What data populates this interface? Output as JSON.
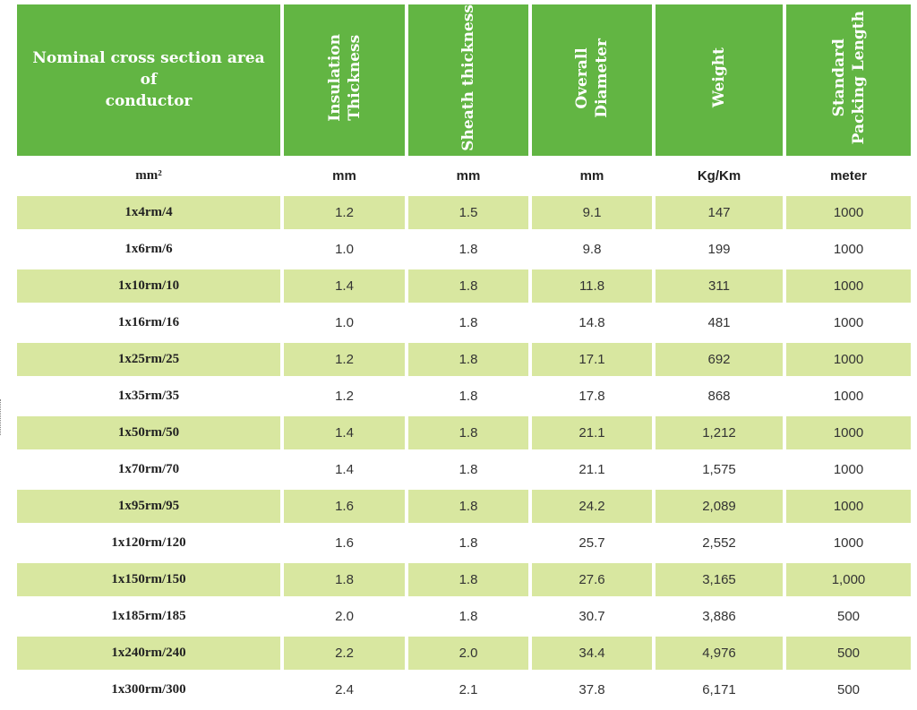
{
  "headers": [
    "Nominal cross section area of conductor",
    "Insulation Thickness",
    "Sheath thickness",
    "Overall Diameter",
    "Weight",
    "Standard Packing Length"
  ],
  "header_lines": [
    [
      "Nominal cross section area of",
      "conductor"
    ],
    [
      "Insulation",
      "Thickness"
    ],
    [
      "Sheath thickness"
    ],
    [
      "Overall",
      "Diameter"
    ],
    [
      "Weight"
    ],
    [
      "Standard",
      "Packing Length"
    ]
  ],
  "units": [
    "mm²",
    "mm",
    "mm",
    "mm",
    "Kg/Km",
    "meter"
  ],
  "rows": [
    [
      "1x4rm/4",
      "1.2",
      "1.5",
      "9.1",
      "147",
      "1000"
    ],
    [
      "1x6rm/6",
      "1.0",
      "1.8",
      "9.8",
      "199",
      "1000"
    ],
    [
      "1x10rm/10",
      "1.4",
      "1.8",
      "11.8",
      "311",
      "1000"
    ],
    [
      "1x16rm/16",
      "1.0",
      "1.8",
      "14.8",
      "481",
      "1000"
    ],
    [
      "1x25rm/25",
      "1.2",
      "1.8",
      "17.1",
      "692",
      "1000"
    ],
    [
      "1x35rm/35",
      "1.2",
      "1.8",
      "17.8",
      "868",
      "1000"
    ],
    [
      "1x50rm/50",
      "1.4",
      "1.8",
      "21.1",
      "1,212",
      "1000"
    ],
    [
      "1x70rm/70",
      "1.4",
      "1.8",
      "21.1",
      "1,575",
      "1000"
    ],
    [
      "1x95rm/95",
      "1.6",
      "1.8",
      "24.2",
      "2,089",
      "1000"
    ],
    [
      "1x120rm/120",
      "1.6",
      "1.8",
      "25.7",
      "2,552",
      "1000"
    ],
    [
      "1x150rm/150",
      "1.8",
      "1.8",
      "27.6",
      "3,165",
      "1,000"
    ],
    [
      "1x185rm/185",
      "2.0",
      "1.8",
      "30.7",
      "3,886",
      "500"
    ],
    [
      "1x240rm/240",
      "2.2",
      "2.0",
      "34.4",
      "4,976",
      "500"
    ],
    [
      "1x300rm/300",
      "2.4",
      "2.1",
      "37.8",
      "6,171",
      "500"
    ]
  ],
  "colors": {
    "header_bg": "#62b543",
    "shaded_row_bg": "#d8e7a0"
  }
}
